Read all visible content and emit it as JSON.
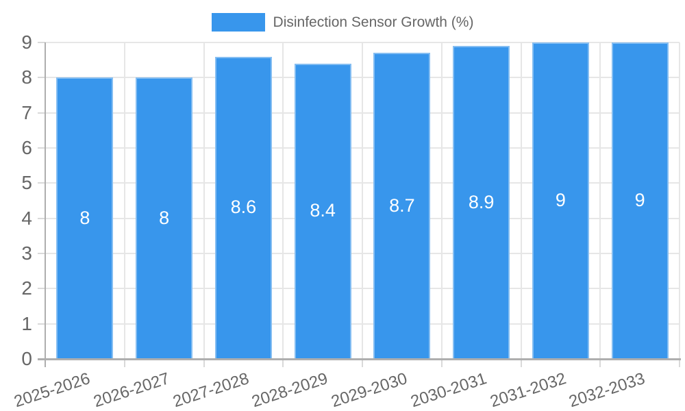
{
  "chart_data": {
    "type": "bar",
    "title": "",
    "xlabel": "",
    "ylabel": "",
    "legend": {
      "label": "Disinfection Sensor Growth (%)",
      "position": "top"
    },
    "categories": [
      "2025-2026",
      "2026-2027",
      "2027-2028",
      "2028-2029",
      "2029-2030",
      "2030-2031",
      "2031-2032",
      "2032-2033"
    ],
    "series": [
      {
        "name": "Disinfection Sensor Growth (%)",
        "values": [
          8,
          8,
          8.6,
          8.4,
          8.7,
          8.9,
          9,
          9
        ],
        "value_labels": [
          "8",
          "8",
          "8.6",
          "8.4",
          "8.7",
          "8.9",
          "9",
          "9"
        ]
      }
    ],
    "ylim": [
      0,
      9
    ],
    "yticks": [
      0,
      1,
      2,
      3,
      4,
      5,
      6,
      7,
      8,
      9
    ],
    "grid": true,
    "colors": {
      "bar_fill": "#3896EC",
      "bar_border": "#85bef2",
      "grid": "#e6e6e6",
      "axis": "#aeaeae",
      "tick": "#d9d9d9",
      "tick_label": "#666666",
      "legend_text": "#666666",
      "data_label": "#ffffff",
      "background": "#ffffff"
    }
  }
}
